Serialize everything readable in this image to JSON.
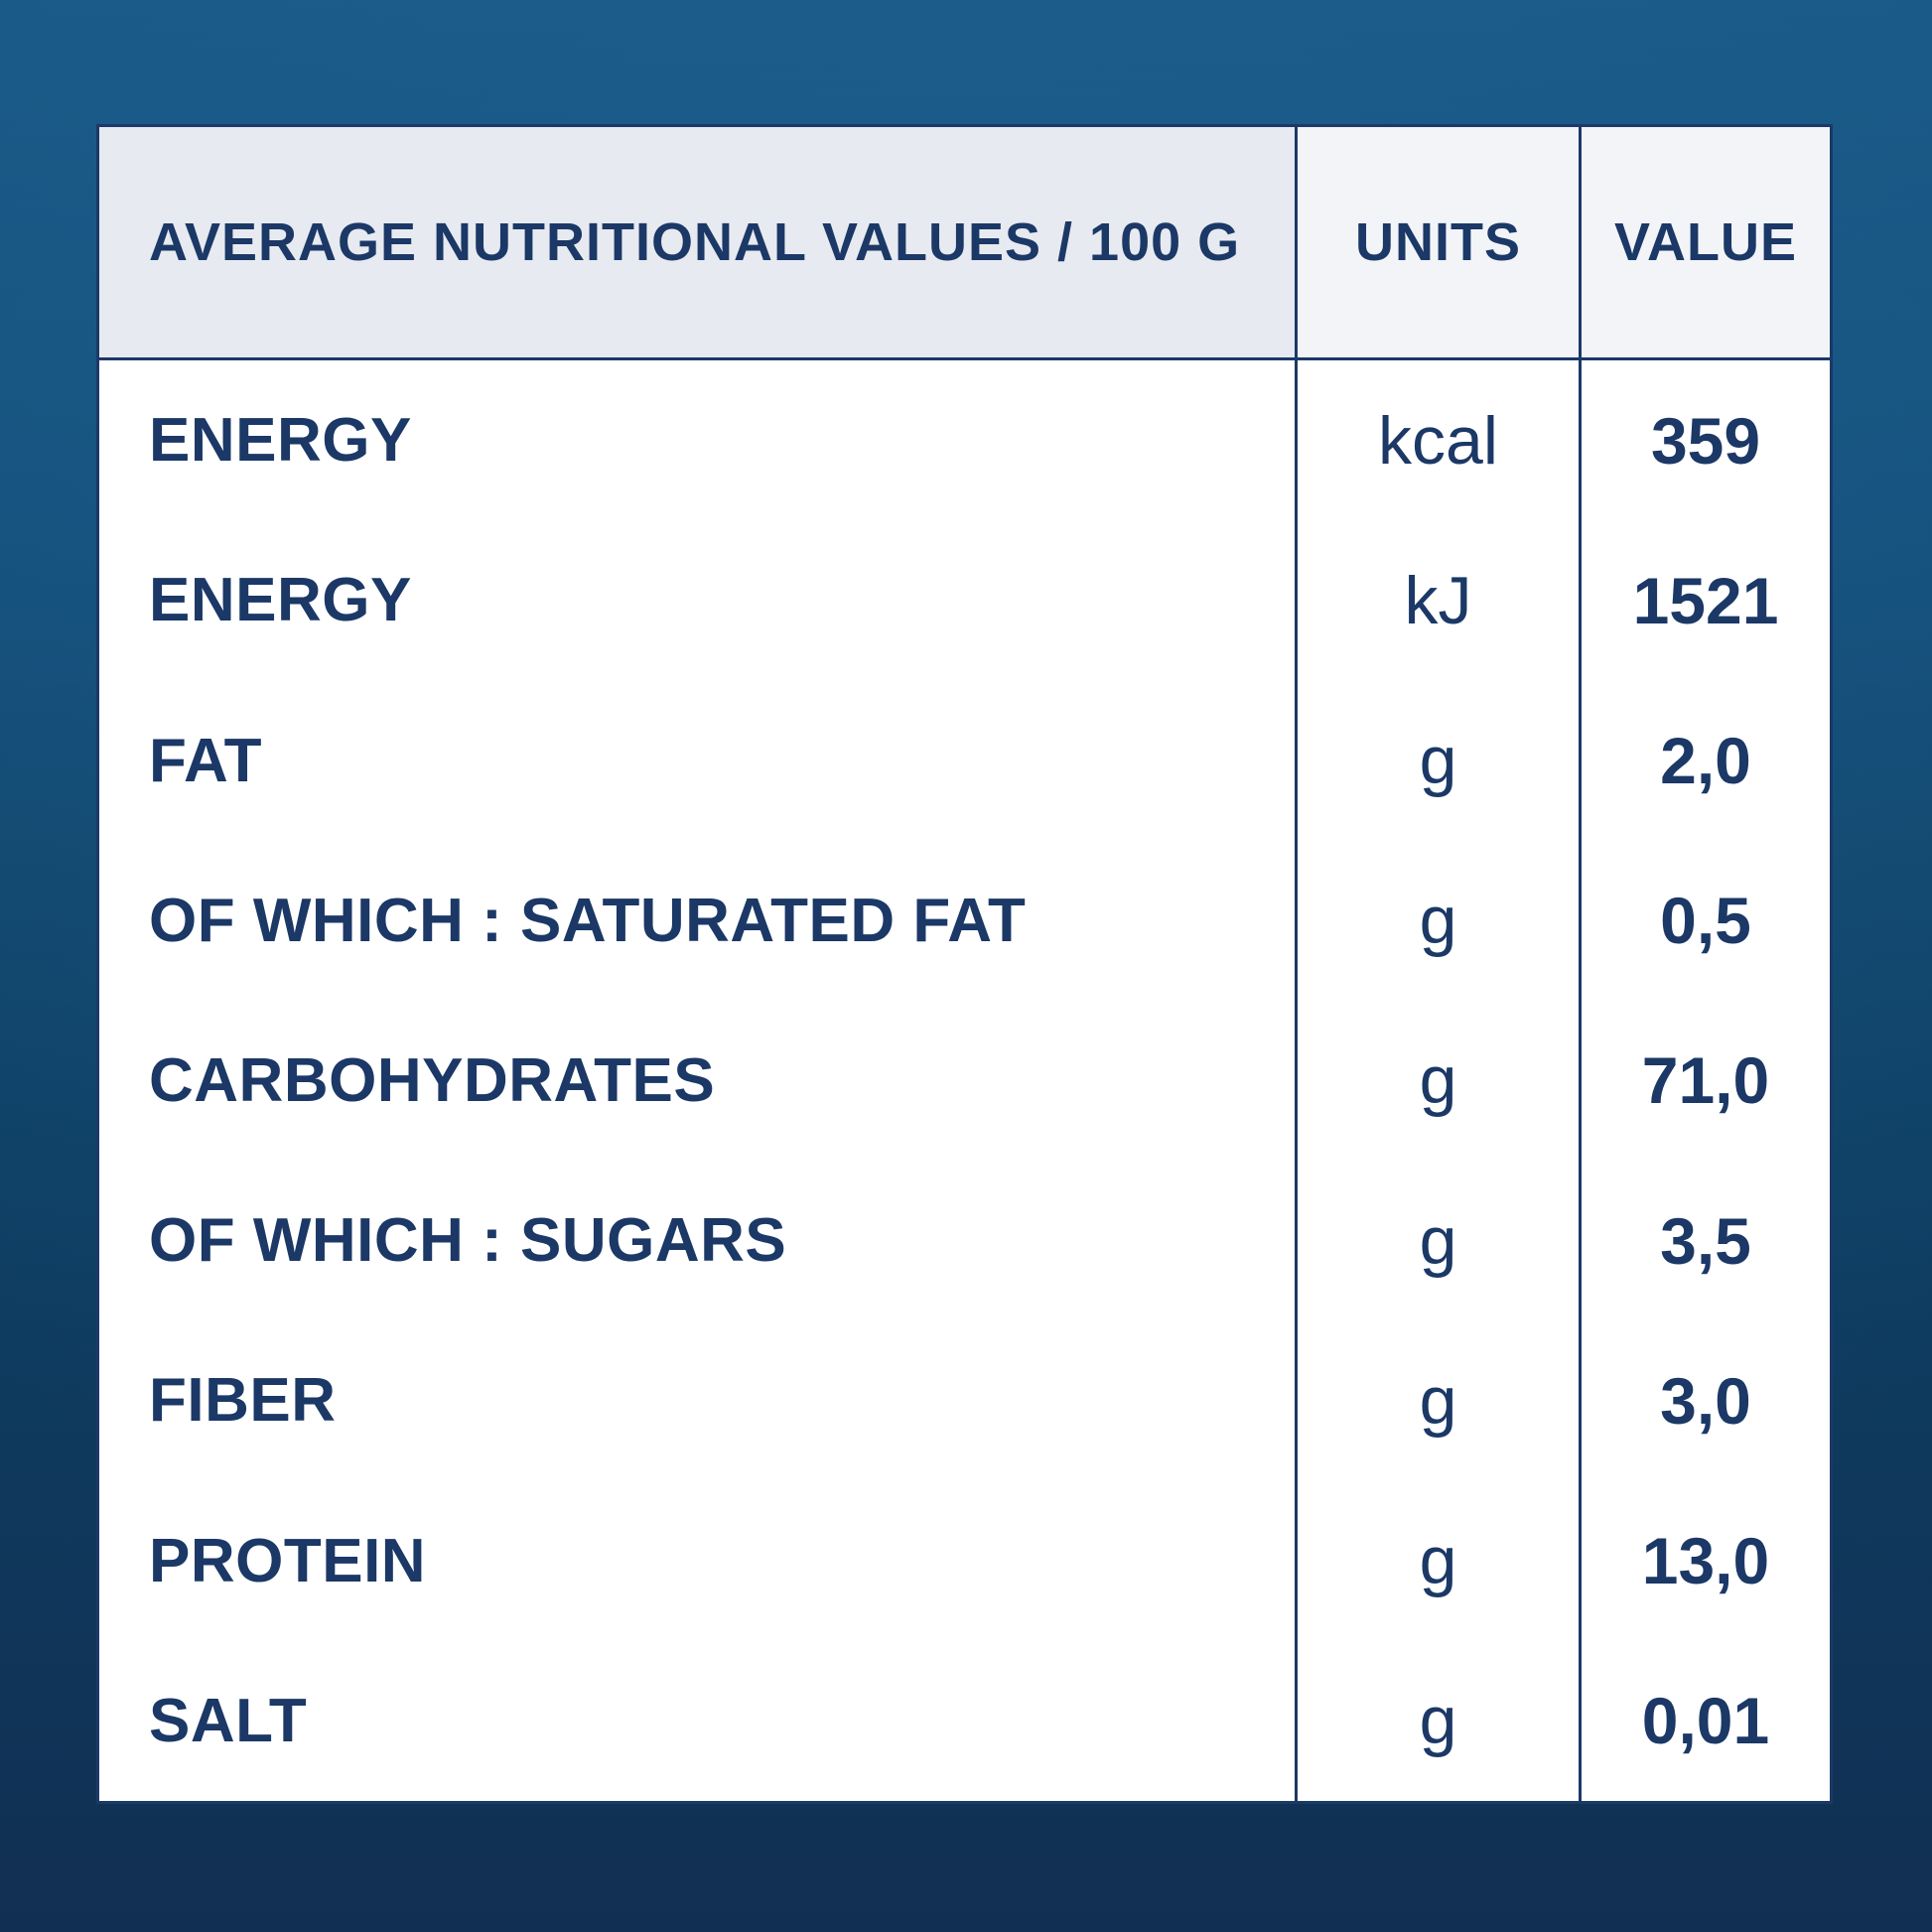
{
  "table": {
    "header": {
      "label": "AVERAGE NUTRITIONAL VALUES / 100 G",
      "units": "UNITS",
      "value": "VALUE"
    },
    "rows": [
      {
        "label": "ENERGY",
        "unit": "kcal",
        "value": "359"
      },
      {
        "label": "ENERGY",
        "unit": "kJ",
        "value": "1521"
      },
      {
        "label": "FAT",
        "unit": "g",
        "value": "2,0"
      },
      {
        "label": "OF WHICH : SATURATED FAT",
        "unit": "g",
        "value": "0,5"
      },
      {
        "label": "CARBOHYDRATES",
        "unit": "g",
        "value": "71,0"
      },
      {
        "label": "OF WHICH : SUGARS",
        "unit": "g",
        "value": "3,5"
      },
      {
        "label": "FIBER",
        "unit": "g",
        "value": "3,0"
      },
      {
        "label": "PROTEIN",
        "unit": "g",
        "value": "13,0"
      },
      {
        "label": "SALT",
        "unit": "g",
        "value": "0,01"
      }
    ],
    "colors": {
      "navy": "#1b3866",
      "border": "#1c3968",
      "header_main_bg": "#e7eaf0",
      "header_sub_bg": "#f2f4f8",
      "body_bg": "#ffffff",
      "background_top": "#1a5a88",
      "background_bottom": "#112f52"
    }
  }
}
